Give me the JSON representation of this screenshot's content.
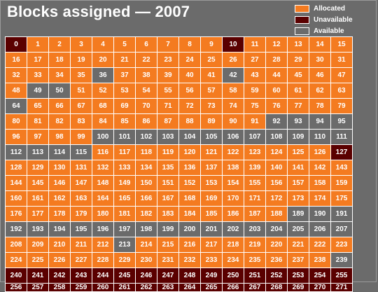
{
  "title": "Blocks assigned — 2007",
  "legend": {
    "allocated": {
      "label": "Allocated",
      "color": "#f47b20"
    },
    "unavailable": {
      "label": "Unavailable",
      "color": "#5a0000"
    },
    "available": {
      "label": "Available",
      "color": "#6b6b6b"
    }
  },
  "blocks": [
    "U",
    "A",
    "A",
    "A",
    "A",
    "A",
    "A",
    "A",
    "A",
    "A",
    "U",
    "A",
    "A",
    "A",
    "A",
    "A",
    "A",
    "A",
    "A",
    "A",
    "A",
    "A",
    "A",
    "A",
    "A",
    "A",
    "A",
    "A",
    "A",
    "A",
    "A",
    "A",
    "A",
    "A",
    "A",
    "A",
    "V",
    "A",
    "A",
    "A",
    "A",
    "A",
    "V",
    "A",
    "A",
    "A",
    "A",
    "A",
    "A",
    "V",
    "V",
    "A",
    "A",
    "A",
    "A",
    "A",
    "A",
    "A",
    "A",
    "A",
    "A",
    "A",
    "A",
    "A",
    "V",
    "A",
    "A",
    "A",
    "A",
    "A",
    "A",
    "A",
    "A",
    "A",
    "A",
    "A",
    "A",
    "A",
    "A",
    "A",
    "A",
    "A",
    "A",
    "A",
    "A",
    "A",
    "A",
    "A",
    "A",
    "A",
    "A",
    "A",
    "V",
    "V",
    "V",
    "V",
    "A",
    "A",
    "A",
    "A",
    "V",
    "V",
    "V",
    "V",
    "V",
    "V",
    "V",
    "V",
    "V",
    "V",
    "V",
    "V",
    "V",
    "V",
    "V",
    "V",
    "A",
    "A",
    "A",
    "A",
    "A",
    "A",
    "A",
    "A",
    "A",
    "A",
    "A",
    "U",
    "A",
    "A",
    "A",
    "A",
    "A",
    "A",
    "A",
    "A",
    "A",
    "A",
    "A",
    "A",
    "A",
    "A",
    "A",
    "A",
    "A",
    "A",
    "A",
    "A",
    "A",
    "A",
    "A",
    "A",
    "A",
    "A",
    "A",
    "A",
    "A",
    "A",
    "A",
    "A",
    "A",
    "A",
    "A",
    "A",
    "A",
    "A",
    "A",
    "A",
    "A",
    "A",
    "A",
    "A",
    "A",
    "A",
    "A",
    "A",
    "A",
    "A",
    "A",
    "A",
    "A",
    "A",
    "A",
    "A",
    "A",
    "A",
    "A",
    "A",
    "A",
    "V",
    "V",
    "V",
    "V",
    "V",
    "V",
    "V",
    "V",
    "V",
    "V",
    "V",
    "V",
    "V",
    "V",
    "V",
    "V",
    "V",
    "V",
    "V",
    "A",
    "A",
    "A",
    "A",
    "A",
    "V",
    "A",
    "A",
    "A",
    "A",
    "A",
    "A",
    "A",
    "A",
    "A",
    "A",
    "A",
    "A",
    "A",
    "A",
    "A",
    "A",
    "A",
    "A",
    "A",
    "A",
    "A",
    "A",
    "A",
    "A",
    "A",
    "V",
    "U",
    "U",
    "U",
    "U",
    "U",
    "U",
    "U",
    "U",
    "U",
    "U",
    "U",
    "U",
    "U",
    "U",
    "U",
    "U",
    "U",
    "U",
    "U",
    "U",
    "U",
    "U",
    "U",
    "U",
    "U",
    "U",
    "U",
    "U",
    "U",
    "U",
    "U",
    "U"
  ]
}
